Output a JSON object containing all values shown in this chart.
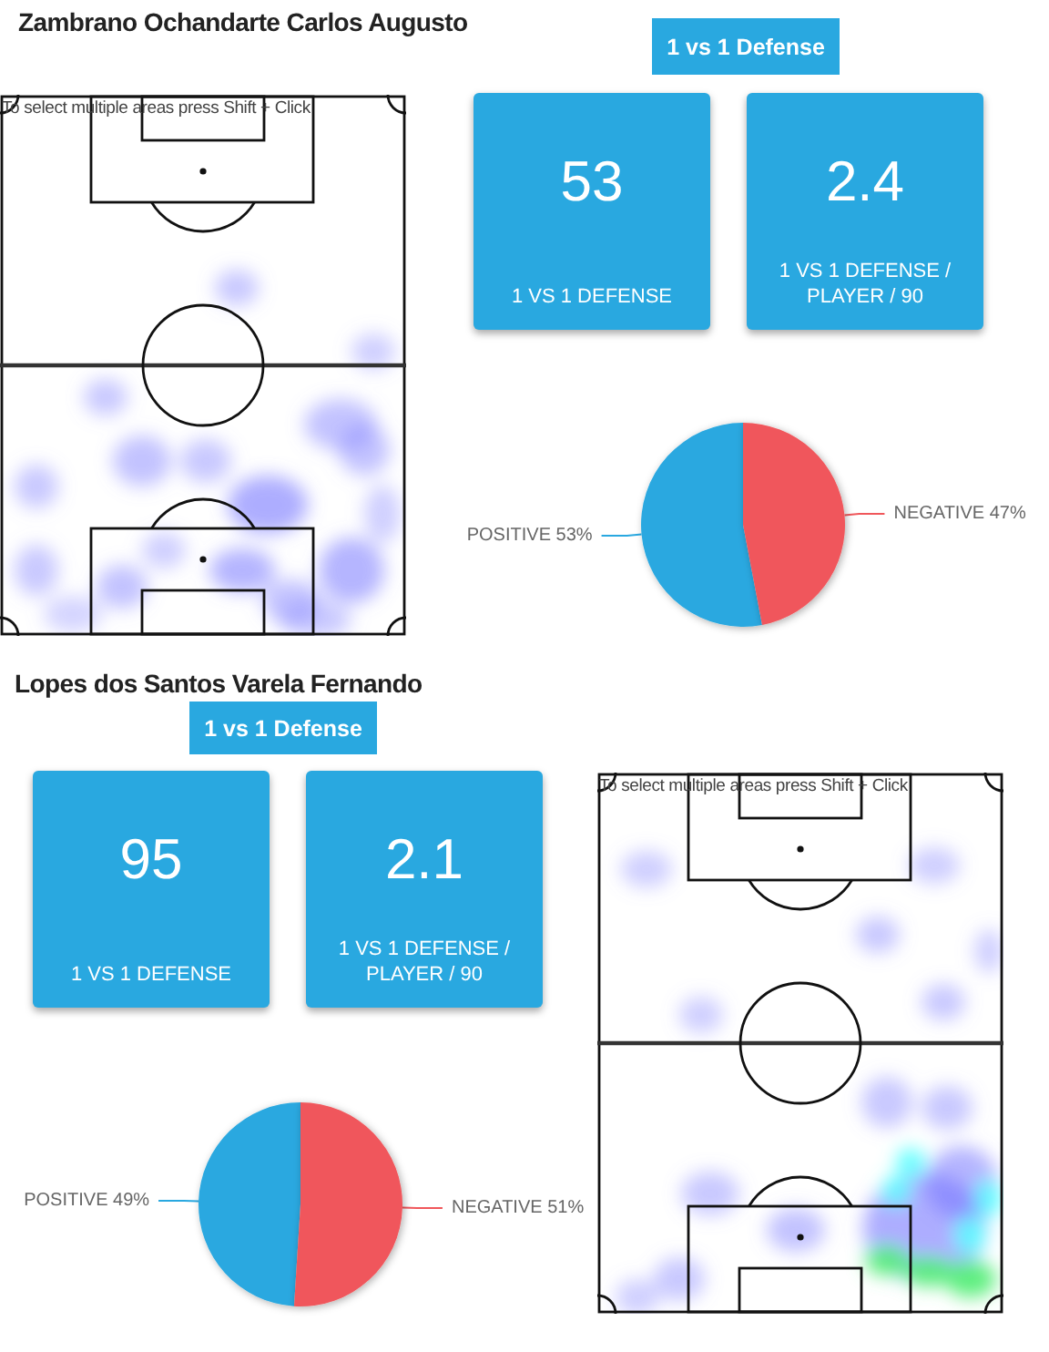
{
  "chart_data": [
    {
      "type": "other",
      "title": "Zambrano Ochandarte Carlos Augusto",
      "subtitle": "1 vs 1 Defense",
      "annotations": [
        "To select multiple areas press Shift + Click"
      ],
      "categories": [
        "1 VS 1 DEFENSE",
        "1 VS 1 DEFENSE / PLAYER / 90"
      ],
      "values": [
        53,
        2.4
      ],
      "color": "#29a8e0",
      "data_labels": true
    },
    {
      "type": "pie",
      "categories": [
        "POSITIVE",
        "NEGATIVE"
      ],
      "values": [
        53,
        47
      ],
      "colors": [
        "#29a8e0",
        "#f0575b"
      ],
      "value_labels": [
        "53%",
        "47%"
      ]
    },
    {
      "type": "other",
      "title": "Lopes dos Santos Varela Fernando",
      "subtitle": "1 vs 1 Defense",
      "annotations": [
        "To select multiple areas press Shift + Click"
      ],
      "categories": [
        "1 VS 1 DEFENSE",
        "1 VS 1 DEFENSE / PLAYER / 90"
      ],
      "values": [
        95,
        2.1
      ],
      "color": "#29a8e0",
      "data_labels": true
    },
    {
      "type": "pie",
      "categories": [
        "POSITIVE",
        "NEGATIVE"
      ],
      "values": [
        49,
        51
      ],
      "colors": [
        "#29a8e0",
        "#f0575b"
      ],
      "value_labels": [
        "49%",
        "51%"
      ]
    }
  ]
}
